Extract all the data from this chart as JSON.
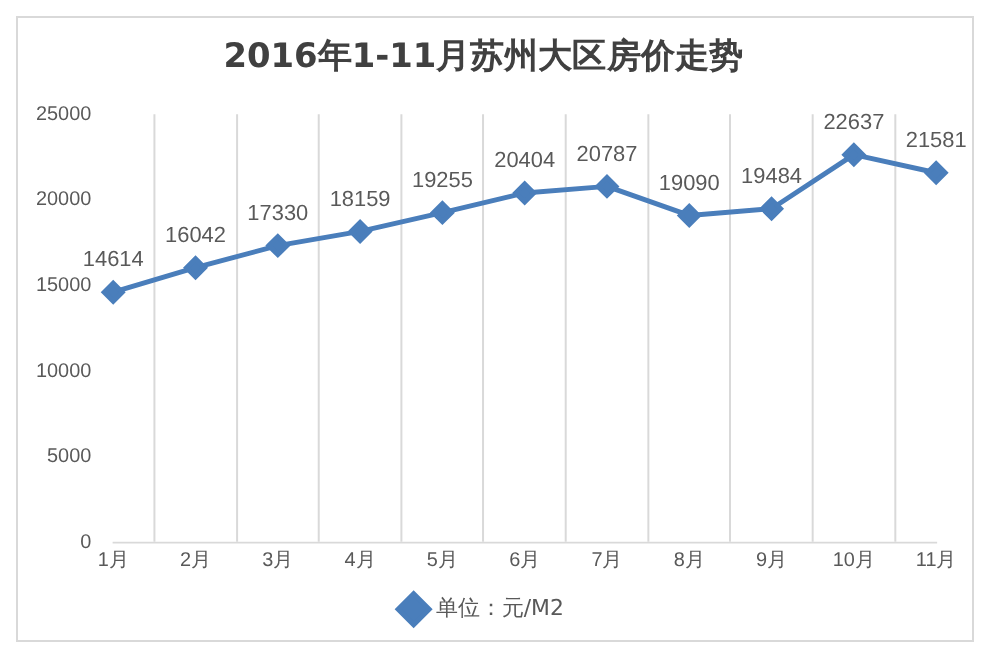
{
  "chart_data": {
    "type": "line",
    "title": "2016年1-11月苏州大区房价走势",
    "categories": [
      "1月",
      "2月",
      "3月",
      "4月",
      "5月",
      "6月",
      "7月",
      "8月",
      "9月",
      "10月",
      "11月"
    ],
    "series": [
      {
        "name": "单位：元/M2",
        "color": "#4a7ebb",
        "values": [
          14614,
          16042,
          17330,
          18159,
          19255,
          20404,
          20787,
          19090,
          19484,
          22637,
          21581
        ]
      }
    ],
    "ylim": [
      0,
      25000
    ],
    "yticks": [
      0,
      5000,
      10000,
      15000,
      20000,
      25000
    ],
    "grid": "x",
    "legend": "bottom",
    "marker": "diamond",
    "line_style": "solid",
    "data_labels": true
  }
}
